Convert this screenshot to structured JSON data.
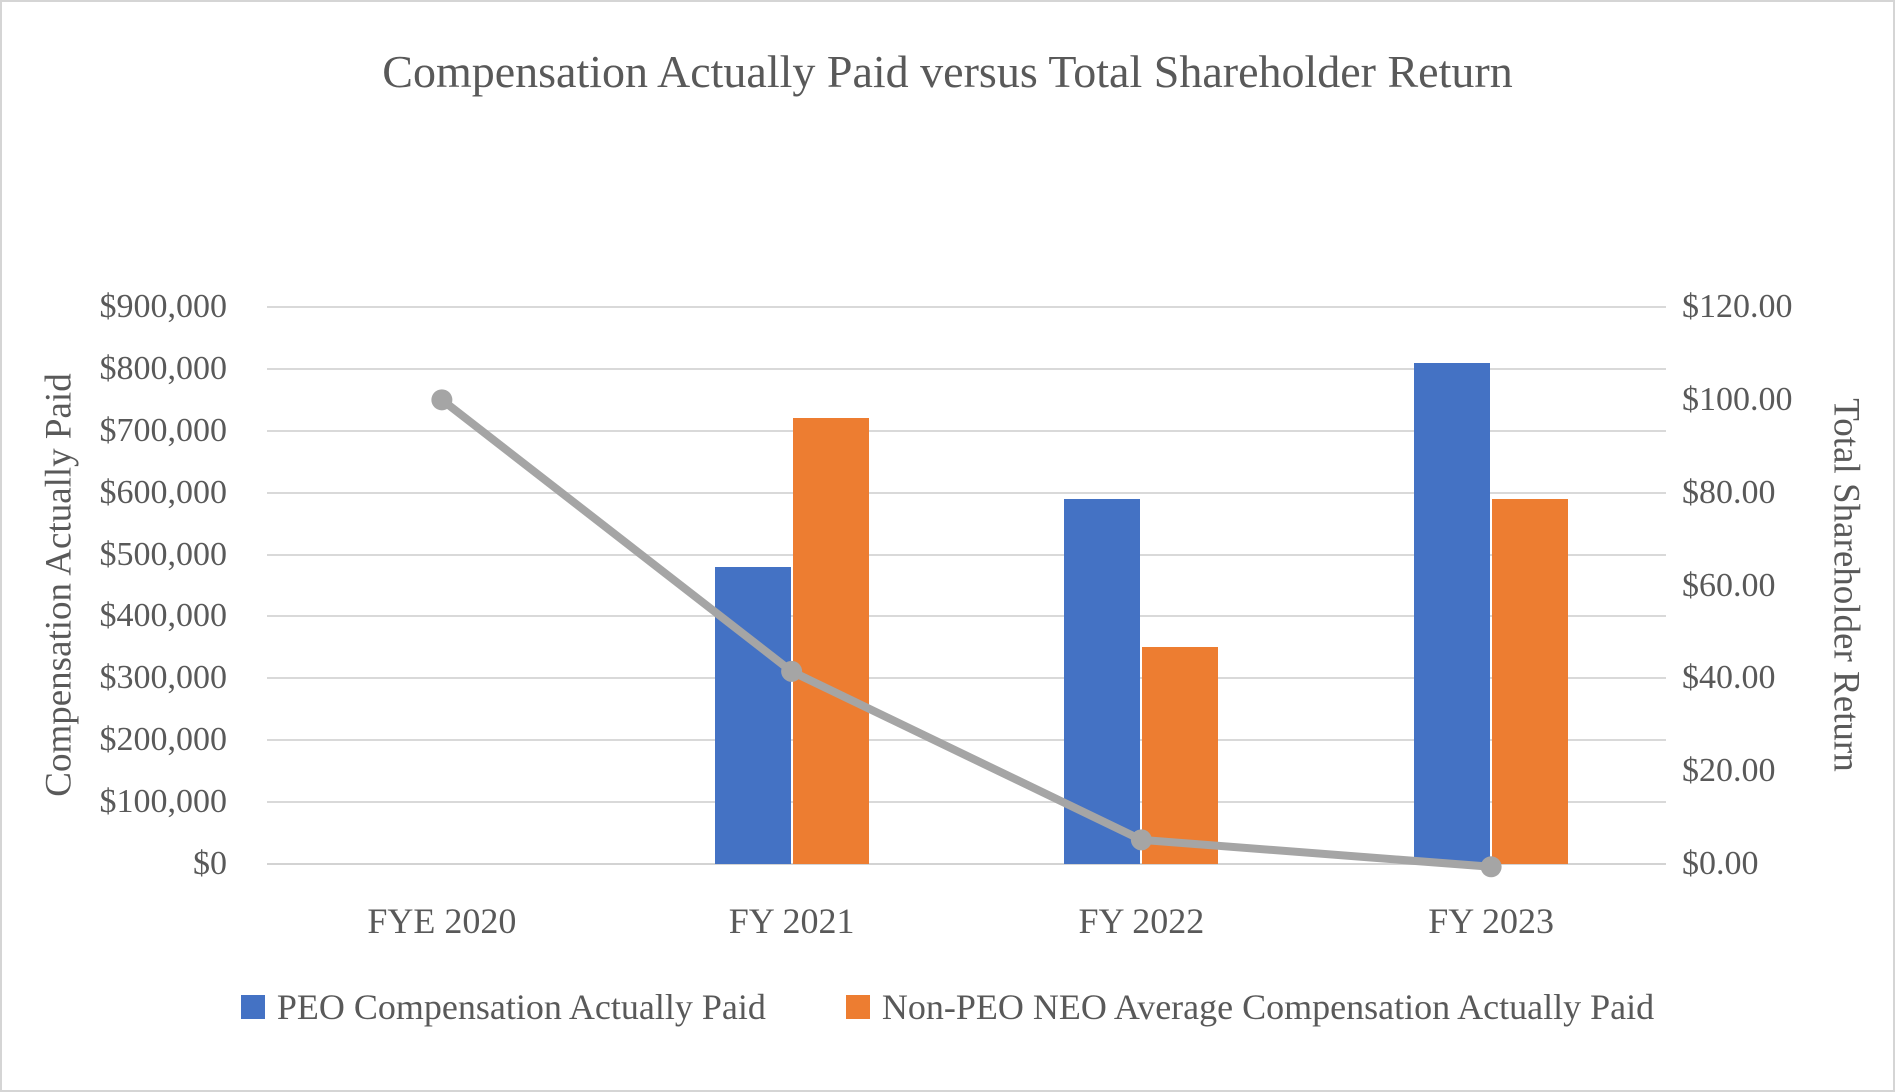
{
  "chart_data": {
    "type": "combo-bar-line",
    "title": "Compensation Actually Paid versus Total Shareholder Return",
    "categories": [
      "FYE 2020",
      "FY 2021",
      "FY 2022",
      "FY 2023"
    ],
    "bar_series": [
      {
        "name": "PEO Compensation Actually Paid",
        "color": "#4472C4",
        "axis": "left",
        "values": [
          0,
          480000,
          590000,
          810000
        ]
      },
      {
        "name": "Non-PEO NEO Average Compensation Actually Paid",
        "color": "#ED7D31",
        "axis": "left",
        "values": [
          0,
          720000,
          350000,
          590000
        ]
      }
    ],
    "line_series": {
      "name": "Total Shareholder Return",
      "color": "#A5A5A5",
      "axis": "right",
      "values": [
        100,
        41.5,
        5.2,
        -0.6
      ]
    },
    "axes": {
      "left": {
        "title": "Compensation Actually Paid",
        "min": 0,
        "max": 900000,
        "step": 100000,
        "ticks": [
          "$900,000",
          "$800,000",
          "$700,000",
          "$600,000",
          "$500,000",
          "$400,000",
          "$300,000",
          "$200,000",
          "$100,000",
          "$0"
        ]
      },
      "right": {
        "title": "Total Shareholder Return",
        "min": 0,
        "max": 120,
        "step": 20,
        "ticks": [
          "$120.00",
          "$100.00",
          "$80.00",
          "$60.00",
          "$40.00",
          "$20.00",
          "$0.00"
        ]
      }
    },
    "legend_position": "bottom",
    "grid": true,
    "colors": {
      "grid": "#D9D9D9",
      "axis_line": "#D3D3D3",
      "text": "#595959",
      "background": "#FFFFFF",
      "frame_border": "#D5D5D5"
    }
  }
}
